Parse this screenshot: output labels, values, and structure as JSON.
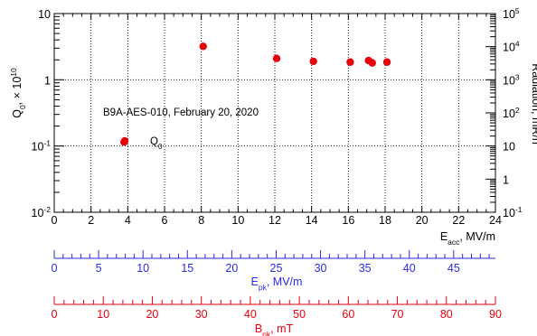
{
  "chart_data": {
    "type": "scatter",
    "annotation": "B9A-AES-010, February 20, 2020",
    "series": [
      {
        "name": "Q₀",
        "color": "#e8000b",
        "x": [
          3.8,
          8.1,
          12.1,
          14.1,
          16.1,
          17.1,
          17.3,
          18.1
        ],
        "y": [
          0.115,
          3.2,
          2.1,
          1.9,
          1.85,
          1.95,
          1.8,
          1.85
        ]
      }
    ],
    "x_axis": {
      "label_main": "E",
      "label_sub": "acc",
      "label_unit": ", MV/m",
      "range": [
        0,
        24
      ],
      "ticks": [
        "0",
        "2",
        "4",
        "6",
        "8",
        "10",
        "12",
        "14",
        "16",
        "18",
        "20",
        "22",
        "24"
      ]
    },
    "y_left": {
      "label_main": "Q",
      "label_sub": "0",
      "label_unit": ", × 10",
      "label_sup": "10",
      "scale": "log",
      "range": [
        0.01,
        10
      ],
      "ticks": [
        {
          "m": "10",
          "e": "-2"
        },
        {
          "m": "10",
          "e": "-1"
        },
        {
          "m": "1",
          "e": ""
        },
        {
          "m": "10",
          "e": ""
        }
      ]
    },
    "y_right": {
      "label": "Radiation, mR/h",
      "scale": "log",
      "range": [
        0.1,
        100000
      ],
      "ticks": [
        {
          "m": "10",
          "e": "-1"
        },
        {
          "m": "1",
          "e": ""
        },
        {
          "m": "10",
          "e": ""
        },
        {
          "m": "10",
          "e": "2"
        },
        {
          "m": "10",
          "e": "3"
        },
        {
          "m": "10",
          "e": "4"
        },
        {
          "m": "10",
          "e": "5"
        }
      ]
    },
    "epk_axis": {
      "label_main": "E",
      "label_sub": "pk",
      "label_unit": ", MV/m",
      "color": "#2a2ae8",
      "range": [
        0,
        49.7
      ],
      "ticks": [
        "0",
        "5",
        "10",
        "15",
        "20",
        "25",
        "30",
        "35",
        "40",
        "45"
      ]
    },
    "bpk_axis": {
      "label_main": "B",
      "label_sub": "pk",
      "label_unit": ", mT",
      "color": "#e8000b",
      "range": [
        0,
        90
      ],
      "ticks": [
        "0",
        "10",
        "20",
        "30",
        "40",
        "50",
        "60",
        "70",
        "80",
        "90"
      ]
    },
    "grid": true,
    "legend": "inside, left"
  }
}
